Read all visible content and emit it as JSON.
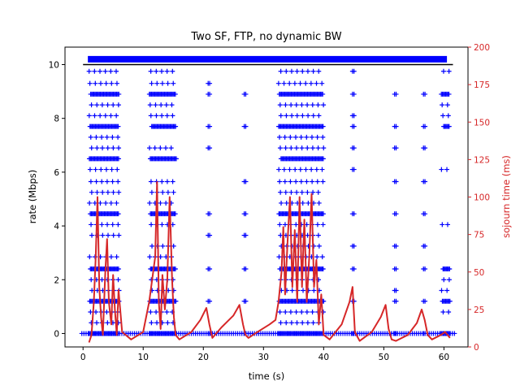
{
  "chart_data": {
    "type": "scatter",
    "title": "Two SF, FTP, no dynamic BW",
    "xlabel": "time (s)",
    "ylabel": "rate (Mbps)",
    "y2label": "sojourn time (ms)",
    "xlim": [
      -3,
      64
    ],
    "ylim": [
      -0.5,
      10.65
    ],
    "y2lim": [
      0,
      200
    ],
    "xticks": [
      0,
      10,
      20,
      30,
      40,
      50,
      60
    ],
    "yticks": [
      0,
      2,
      4,
      6,
      8,
      10
    ],
    "y2ticks": [
      0,
      25,
      50,
      75,
      100,
      125,
      150,
      175,
      200
    ],
    "grid": false,
    "colors": {
      "rate": "#0000ff",
      "sojourn": "#d62728",
      "axis": "#000000"
    },
    "series": [
      {
        "axis": "left",
        "marker": "plus",
        "bursts": [
          {
            "t": [
              1.0,
              6.0
            ],
            "levels": [
              0,
              0.4,
              0.8,
              1.2,
              1.6,
              2.0,
              2.4,
              2.85,
              3.65,
              4.05,
              4.45,
              4.85,
              5.25,
              5.65,
              6.1,
              6.5,
              6.9,
              7.3,
              7.7,
              8.1,
              8.5,
              8.9,
              9.3,
              9.75
            ]
          },
          {
            "t": [
              11.0,
              15.5
            ],
            "levels": [
              0,
              0.4,
              0.8,
              1.2,
              1.6,
              2.0,
              2.4,
              2.85,
              3.25,
              4.05,
              4.45,
              4.85,
              5.25,
              5.65,
              6.5,
              6.9,
              7.7,
              8.1,
              8.5,
              8.9,
              9.3,
              9.75
            ]
          },
          {
            "t": [
              32.5,
              40.0
            ],
            "levels": [
              0,
              0.4,
              0.8,
              1.2,
              1.6,
              2.0,
              2.4,
              2.85,
              3.25,
              3.65,
              4.05,
              4.45,
              4.85,
              5.25,
              5.65,
              6.1,
              6.5,
              6.9,
              7.3,
              7.7,
              8.1,
              8.5,
              8.9,
              9.3,
              9.75
            ]
          },
          {
            "t": [
              59.5,
              61.0
            ],
            "levels": [
              0,
              0.8,
              1.2,
              1.6,
              2.0,
              2.4,
              4.05,
              6.1,
              7.7,
              8.1,
              8.5,
              8.9,
              9.75
            ]
          }
        ],
        "columns": [
          {
            "t": 20.8,
            "levels": [
              0,
              1.2,
              2.4,
              3.65,
              4.45,
              6.9,
              7.7,
              8.9,
              9.3
            ]
          },
          {
            "t": 26.8,
            "levels": [
              0,
              1.2,
              2.4,
              3.65,
              4.45,
              5.65,
              7.7,
              8.9
            ]
          },
          {
            "t": 44.8,
            "levels": [
              0,
              1.2,
              2.4,
              3.25,
              4.45,
              6.1,
              6.9,
              7.7,
              8.1,
              8.9,
              9.75
            ]
          },
          {
            "t": 51.8,
            "levels": [
              0,
              1.2,
              1.6,
              2.4,
              3.25,
              4.45,
              5.65,
              6.9,
              7.7,
              8.9
            ]
          },
          {
            "t": 56.6,
            "levels": [
              0,
              1.2,
              2.4,
              3.25,
              4.45,
              5.65,
              6.9,
              7.7,
              8.9
            ]
          }
        ],
        "dense_line": {
          "y": 10.2,
          "x": [
            0.8,
            60.5
          ]
        },
        "baseline": {
          "y": 10.0,
          "x": [
            0.0,
            61.5
          ]
        },
        "zero_line": {
          "y": 0,
          "x": [
            -0.2,
            61.8
          ]
        }
      },
      {
        "axis": "right",
        "style": "line",
        "x": [
          1,
          1.4,
          1.8,
          2.1,
          2.4,
          2.7,
          3.0,
          3.3,
          3.7,
          4.0,
          4.3,
          4.7,
          5.0,
          5.3,
          5.6,
          5.9,
          6.5,
          8,
          10,
          11,
          11.5,
          12.0,
          12.3,
          12.6,
          12.9,
          13.2,
          13.6,
          14.0,
          14.4,
          14.8,
          15.1,
          15.4,
          16,
          18,
          19.5,
          20.5,
          21.0,
          21.5,
          23,
          25,
          26.0,
          26.6,
          27.0,
          27.5,
          29,
          31,
          32.0,
          32.5,
          33.0,
          33.3,
          33.6,
          34.0,
          34.4,
          34.8,
          35.2,
          35.6,
          36.0,
          36.4,
          36.8,
          37.2,
          37.6,
          38.0,
          38.4,
          38.8,
          39.2,
          39.6,
          40.0,
          41,
          43,
          44.3,
          44.8,
          45.2,
          46,
          48,
          49.5,
          50.3,
          50.8,
          51.3,
          52,
          54,
          55.5,
          56.3,
          56.8,
          57.3,
          58,
          59.5,
          60.2,
          61.0
        ],
        "y": [
          3,
          8,
          30,
          60,
          100,
          40,
          20,
          8,
          50,
          72,
          30,
          15,
          48,
          25,
          8,
          38,
          10,
          5,
          10,
          30,
          45,
          60,
          110,
          30,
          12,
          48,
          25,
          45,
          100,
          45,
          20,
          8,
          5,
          10,
          18,
          26,
          15,
          6,
          13,
          21,
          28,
          15,
          8,
          6,
          10,
          15,
          18,
          30,
          50,
          80,
          35,
          70,
          100,
          40,
          78,
          30,
          100,
          40,
          85,
          30,
          60,
          102,
          40,
          58,
          15,
          35,
          8,
          5,
          15,
          30,
          40,
          10,
          4,
          10,
          20,
          28,
          12,
          5,
          4,
          8,
          16,
          25,
          18,
          8,
          5,
          8,
          10,
          6
        ]
      }
    ]
  }
}
